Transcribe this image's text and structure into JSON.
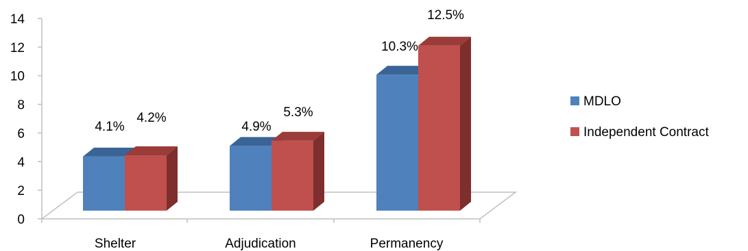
{
  "chart_data": {
    "type": "bar",
    "style": "3d-clustered-column",
    "categories": [
      "Shelter",
      "Adjudication",
      "Permanency"
    ],
    "series": [
      {
        "name": "MDLO",
        "values": [
          4.1,
          4.9,
          10.3
        ],
        "labels": [
          "4.1%",
          "4.9%",
          "10.3%"
        ],
        "color": "#4F81BD",
        "top_color": "#3A6496"
      },
      {
        "name": "Independent Contract",
        "values": [
          4.2,
          5.3,
          12.5
        ],
        "labels": [
          "4.2%",
          "5.3%",
          "12.5%"
        ],
        "color": "#C0504D",
        "top_color": "#9A3C39",
        "side_color": "#7E2E2C"
      }
    ],
    "ylim": [
      0,
      14
    ],
    "yticks": [
      "0",
      "2",
      "4",
      "6",
      "8",
      "10",
      "12",
      "14"
    ],
    "grid": false,
    "legend_position": "right",
    "title": "",
    "xlabel": "",
    "ylabel": ""
  }
}
